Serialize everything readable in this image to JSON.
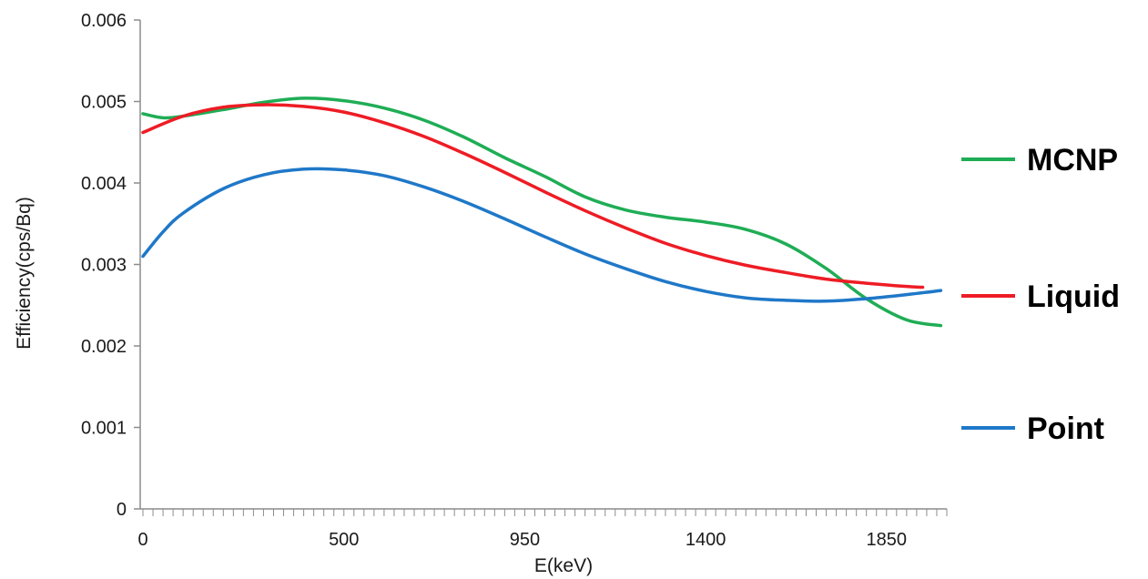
{
  "chart_data": {
    "type": "line",
    "xlabel": "E(keV)",
    "ylabel": "Efficiency(cps/Bq)",
    "xlim": [
      0,
      2000
    ],
    "ylim": [
      0,
      0.006
    ],
    "x_ticks": [
      0,
      500,
      950,
      1400,
      1850
    ],
    "x_tick_labels": [
      "0",
      "500",
      "950",
      "1400",
      "1850"
    ],
    "y_ticks": [
      0,
      0.001,
      0.002,
      0.003,
      0.004,
      0.005,
      0.006
    ],
    "y_tick_labels": [
      "0",
      "0.001",
      "0.002",
      "0.003",
      "0.004",
      "0.005",
      "0.006"
    ],
    "grid": false,
    "legend_position": "right",
    "series": [
      {
        "name": "MCNP",
        "color": "#1fad55",
        "x": [
          0,
          50,
          100,
          200,
          300,
          400,
          500,
          600,
          700,
          800,
          900,
          1000,
          1100,
          1200,
          1300,
          1400,
          1500,
          1600,
          1700,
          1800,
          1900,
          1985
        ],
        "y": [
          0.00485,
          0.0048,
          0.00482,
          0.0049,
          0.00499,
          0.00504,
          0.00501,
          0.00492,
          0.00477,
          0.00456,
          0.00431,
          0.00408,
          0.00383,
          0.00367,
          0.00358,
          0.00352,
          0.00343,
          0.00325,
          0.00295,
          0.00258,
          0.00232,
          0.00225
        ]
      },
      {
        "name": "Liquid",
        "color": "#ee1c25",
        "x": [
          0,
          100,
          200,
          300,
          400,
          500,
          600,
          700,
          800,
          900,
          1000,
          1100,
          1200,
          1300,
          1400,
          1500,
          1600,
          1700,
          1800,
          1900,
          1940
        ],
        "y": [
          0.00462,
          0.00482,
          0.00493,
          0.00496,
          0.00494,
          0.00487,
          0.00474,
          0.00457,
          0.00436,
          0.00413,
          0.00389,
          0.00366,
          0.00345,
          0.00326,
          0.00311,
          0.00299,
          0.0029,
          0.00282,
          0.00277,
          0.00273,
          0.00272
        ]
      },
      {
        "name": "Point",
        "color": "#1f78c8",
        "x": [
          0,
          50,
          100,
          200,
          300,
          400,
          500,
          600,
          700,
          800,
          900,
          1000,
          1100,
          1200,
          1300,
          1400,
          1500,
          1600,
          1700,
          1800,
          1900,
          1985
        ],
        "y": [
          0.0031,
          0.0034,
          0.00363,
          0.00393,
          0.0041,
          0.00417,
          0.00416,
          0.00409,
          0.00395,
          0.00377,
          0.00356,
          0.00334,
          0.00313,
          0.00295,
          0.00279,
          0.00267,
          0.00259,
          0.00256,
          0.00255,
          0.00258,
          0.00263,
          0.00268
        ]
      }
    ]
  }
}
